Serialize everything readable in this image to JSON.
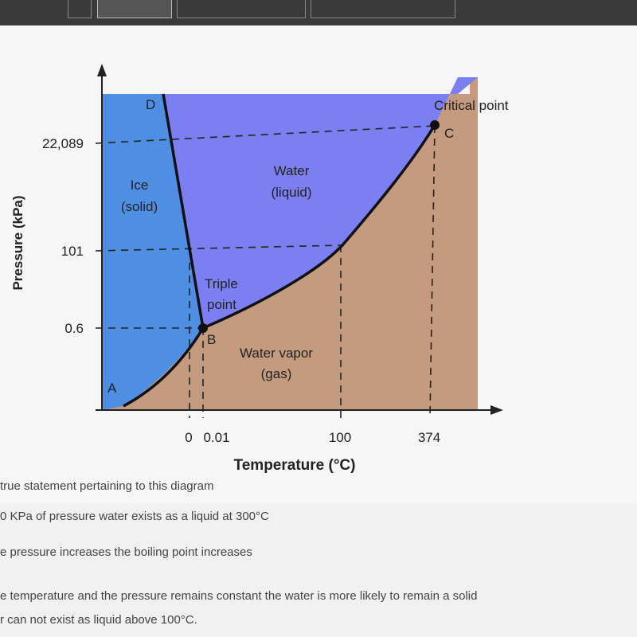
{
  "diagram": {
    "y_axis_title": "Pressure (kPa)",
    "x_axis_title": "Temperature (°C)",
    "y_tick_labels": [
      "22,089",
      "101",
      "0.6"
    ],
    "x_tick_labels": [
      "0",
      "0.01",
      "100",
      "374"
    ],
    "regions": {
      "ice": [
        "Ice",
        "(solid)"
      ],
      "water": [
        "Water",
        "(liquid)"
      ],
      "vapor": [
        "Water vapor",
        "(gas)"
      ]
    },
    "points": {
      "a": "A",
      "b": "B",
      "c": "C",
      "d": "D"
    },
    "critical_point": "Critical point",
    "triple_point": [
      "Triple",
      "point"
    ]
  },
  "question": {
    "prompt": "true statement pertaining to this diagram",
    "options": [
      "0 KPa of pressure water exists as a liquid at 300°C",
      "e pressure increases the boiling point increases",
      "e temperature and the pressure remains constant the water is more likely to remain a solid",
      "r can not exist as liquid above 100°C."
    ]
  }
}
